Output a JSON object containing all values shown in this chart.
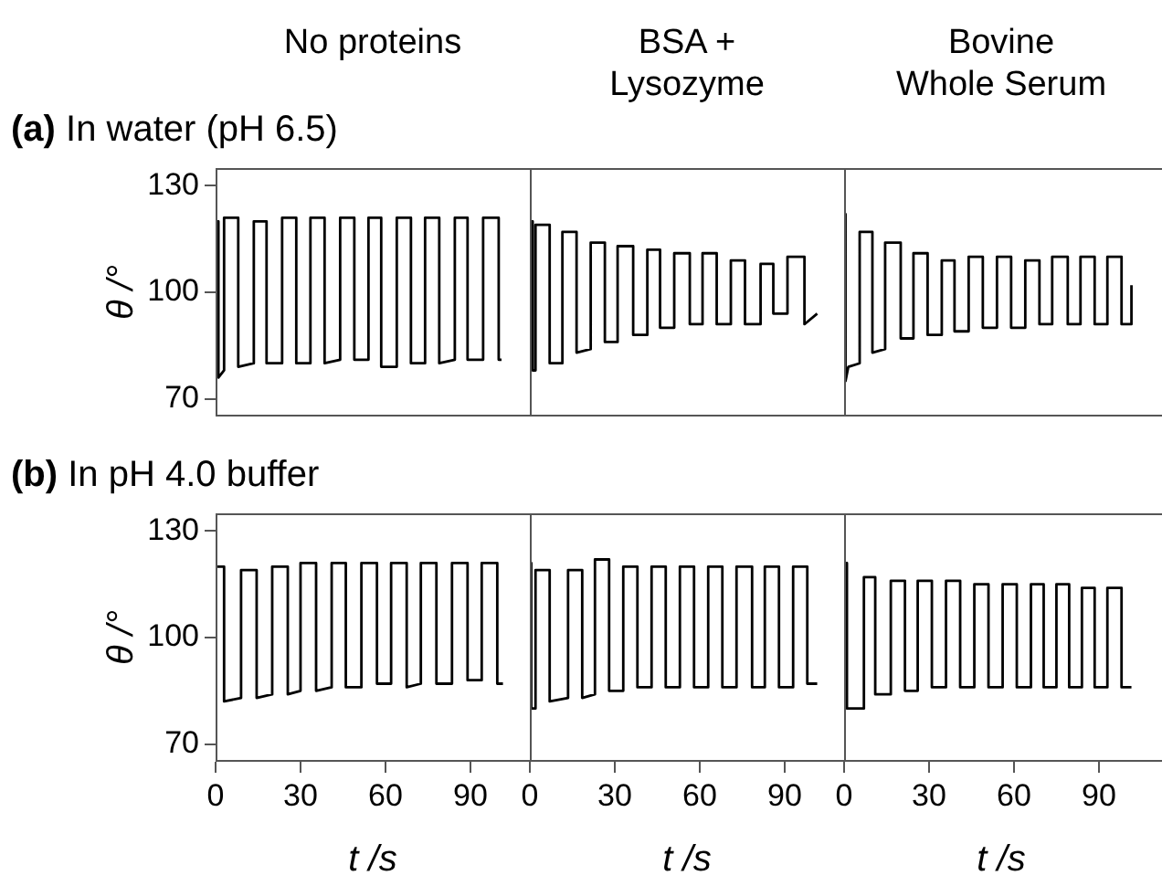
{
  "chart_data": [
    {
      "type": "line",
      "title": "No proteins",
      "subtitle": "(a) In water (pH 6.5)",
      "ylabel": "θ /°",
      "xlim": [
        0,
        111
      ],
      "xticks": [
        0,
        30,
        60,
        90
      ],
      "ylim": [
        65,
        135
      ],
      "yticks": [
        70,
        100,
        130
      ],
      "tick_labels": "y",
      "grid": false,
      "legend": false,
      "marker": "none",
      "line_style": "solid",
      "series": [
        {
          "color": "#000000",
          "x": [
            0,
            1,
            1,
            3,
            3,
            8,
            8,
            13.5,
            13.5,
            18,
            18,
            23.5,
            23.5,
            28.5,
            28.5,
            33.5,
            33.5,
            38.5,
            38.5,
            44,
            44,
            49,
            49,
            54,
            54,
            58.5,
            58.5,
            64,
            64,
            69,
            69,
            74,
            74,
            79,
            79,
            84.5,
            84.5,
            89,
            89,
            94.5,
            94.5,
            100,
            100,
            101
          ],
          "values": [
            120,
            120,
            76,
            78,
            121,
            121,
            79,
            80,
            120,
            120,
            80,
            80,
            121,
            121,
            80,
            80,
            121,
            121,
            80,
            81,
            121,
            121,
            81,
            81,
            121,
            121,
            79,
            79,
            121,
            121,
            80,
            80,
            121,
            121,
            80,
            81,
            121,
            121,
            81,
            81,
            121,
            121,
            81,
            81
          ]
        }
      ]
    },
    {
      "type": "line",
      "title": "BSA +\nLysozyme",
      "xlim": [
        0,
        111
      ],
      "xticks": [
        0,
        30,
        60,
        90
      ],
      "ylim": [
        65,
        135
      ],
      "yticks": [
        70,
        100,
        130
      ],
      "tick_labels": false,
      "grid": false,
      "legend": false,
      "marker": "none",
      "line_style": "solid",
      "series": [
        {
          "color": "#000000",
          "x": [
            0,
            1,
            1,
            2,
            2,
            7,
            7,
            11.5,
            11.5,
            16.5,
            16.5,
            21.5,
            21.5,
            26.5,
            26.5,
            31,
            31,
            36.5,
            36.5,
            41.5,
            41.5,
            46,
            46,
            51,
            51,
            56.5,
            56.5,
            61,
            61,
            66,
            66,
            71,
            71,
            76,
            76,
            81.5,
            81.5,
            86,
            86,
            91,
            91,
            97,
            97,
            101.5
          ],
          "values": [
            120,
            120,
            78,
            78,
            119,
            119,
            80,
            80,
            117,
            117,
            83,
            84,
            114,
            114,
            86,
            86,
            113,
            113,
            88,
            88,
            112,
            112,
            90,
            90,
            111,
            111,
            91,
            91,
            111,
            111,
            91,
            91,
            109,
            109,
            91,
            91,
            108,
            108,
            94,
            94,
            110,
            110,
            91,
            94
          ]
        }
      ]
    },
    {
      "type": "line",
      "title": "Bovine\nWhole Serum",
      "xlim": [
        0,
        111
      ],
      "xticks": [
        0,
        30,
        60,
        90
      ],
      "ylim": [
        65,
        135
      ],
      "yticks": [
        70,
        100,
        130
      ],
      "tick_labels": false,
      "grid": false,
      "legend": false,
      "marker": "none",
      "line_style": "solid",
      "series": [
        {
          "color": "#000000",
          "x": [
            0,
            0.5,
            0.5,
            1.5,
            5.5,
            5.5,
            10,
            10,
            14.5,
            14.5,
            20,
            20,
            24.5,
            24.5,
            29.5,
            29.5,
            34.5,
            34.5,
            39,
            39,
            44,
            44,
            49,
            49,
            54,
            54,
            59,
            59,
            64,
            64,
            69,
            69,
            73.5,
            73.5,
            79,
            79,
            83.5,
            83.5,
            88.5,
            88.5,
            93,
            93,
            98,
            98,
            101.5,
            101.5
          ],
          "values": [
            122,
            122,
            75,
            79,
            80,
            117,
            117,
            83,
            84,
            114,
            114,
            87,
            87,
            111,
            111,
            88,
            88,
            109,
            109,
            89,
            89,
            110,
            110,
            90,
            90,
            110,
            110,
            90,
            90,
            109,
            109,
            91,
            91,
            110,
            110,
            91,
            91,
            110,
            110,
            91,
            91,
            110,
            110,
            91,
            91,
            102
          ]
        }
      ]
    },
    {
      "type": "line",
      "subtitle": "(b) In pH 4.0 buffer",
      "xlabel": "t /s",
      "ylabel": "θ /°",
      "xlim": [
        0,
        111
      ],
      "xticks": [
        0,
        30,
        60,
        90
      ],
      "ylim": [
        65,
        135
      ],
      "yticks": [
        70,
        100,
        130
      ],
      "grid": false,
      "legend": false,
      "marker": "none",
      "line_style": "solid",
      "series": [
        {
          "color": "#000000",
          "x": [
            0,
            3,
            3,
            9,
            9,
            14.5,
            14.5,
            20,
            20,
            25.5,
            25.5,
            30,
            30,
            35.5,
            35.5,
            41,
            41,
            46,
            46,
            51.5,
            51.5,
            57,
            57,
            62,
            62,
            67.5,
            67.5,
            72.5,
            72.5,
            78,
            78,
            83.5,
            83.5,
            89,
            89,
            94,
            94,
            99.5,
            99.5,
            101.5
          ],
          "values": [
            120,
            120,
            82,
            83,
            119,
            119,
            83,
            84,
            120,
            120,
            84,
            85,
            121,
            121,
            85,
            86,
            121,
            121,
            86,
            86,
            121,
            121,
            87,
            87,
            121,
            121,
            86,
            87,
            121,
            121,
            87,
            87,
            121,
            121,
            88,
            88,
            121,
            121,
            87,
            87
          ]
        }
      ]
    },
    {
      "type": "line",
      "xlabel": "t /s",
      "xlim": [
        0,
        111
      ],
      "xticks": [
        0,
        30,
        60,
        90
      ],
      "ylim": [
        65,
        135
      ],
      "yticks": [
        70,
        100,
        130
      ],
      "tick_labels": "x",
      "grid": false,
      "legend": false,
      "marker": "none",
      "line_style": "solid",
      "series": [
        {
          "color": "#000000",
          "x": [
            0,
            0.5,
            0.5,
            2,
            2,
            7,
            7,
            13.5,
            13.5,
            18.5,
            18.5,
            23,
            23,
            28,
            28,
            33,
            33,
            38,
            38,
            43,
            43,
            48,
            48,
            53,
            53,
            58,
            58,
            63,
            63,
            68,
            68,
            73,
            73,
            78.5,
            78.5,
            83,
            83,
            88,
            88,
            93,
            93,
            98,
            98,
            101.5
          ],
          "values": [
            121,
            121,
            80,
            80,
            119,
            119,
            82,
            83,
            119,
            119,
            83,
            84,
            122,
            122,
            85,
            85,
            120,
            120,
            86,
            86,
            120,
            120,
            86,
            86,
            120,
            120,
            86,
            86,
            120,
            120,
            86,
            86,
            120,
            120,
            86,
            86,
            120,
            120,
            86,
            86,
            120,
            120,
            87,
            87
          ]
        }
      ]
    },
    {
      "type": "line",
      "xlabel": "t /s",
      "xlim": [
        0,
        111
      ],
      "xticks": [
        0,
        30,
        60,
        90
      ],
      "ylim": [
        65,
        135
      ],
      "yticks": [
        70,
        100,
        130
      ],
      "tick_labels": "x",
      "grid": false,
      "legend": false,
      "marker": "none",
      "line_style": "solid",
      "series": [
        {
          "color": "#000000",
          "x": [
            0,
            1,
            1,
            7,
            7,
            11,
            11,
            16.5,
            16.5,
            21.5,
            21.5,
            26,
            26,
            31,
            31,
            36,
            36,
            41,
            41,
            46,
            46,
            51,
            51,
            56,
            56,
            61,
            61,
            66,
            66,
            70.5,
            70.5,
            75,
            75,
            79.5,
            79.5,
            84,
            84,
            88.5,
            88.5,
            93,
            93,
            98,
            98,
            101.5
          ],
          "values": [
            121,
            121,
            80,
            80,
            117,
            117,
            84,
            84,
            116,
            116,
            85,
            85,
            116,
            116,
            86,
            86,
            116,
            116,
            86,
            86,
            115,
            115,
            86,
            86,
            115,
            115,
            86,
            86,
            115,
            115,
            86,
            86,
            115,
            115,
            86,
            86,
            114,
            114,
            86,
            86,
            114,
            114,
            86,
            86
          ]
        }
      ]
    }
  ]
}
